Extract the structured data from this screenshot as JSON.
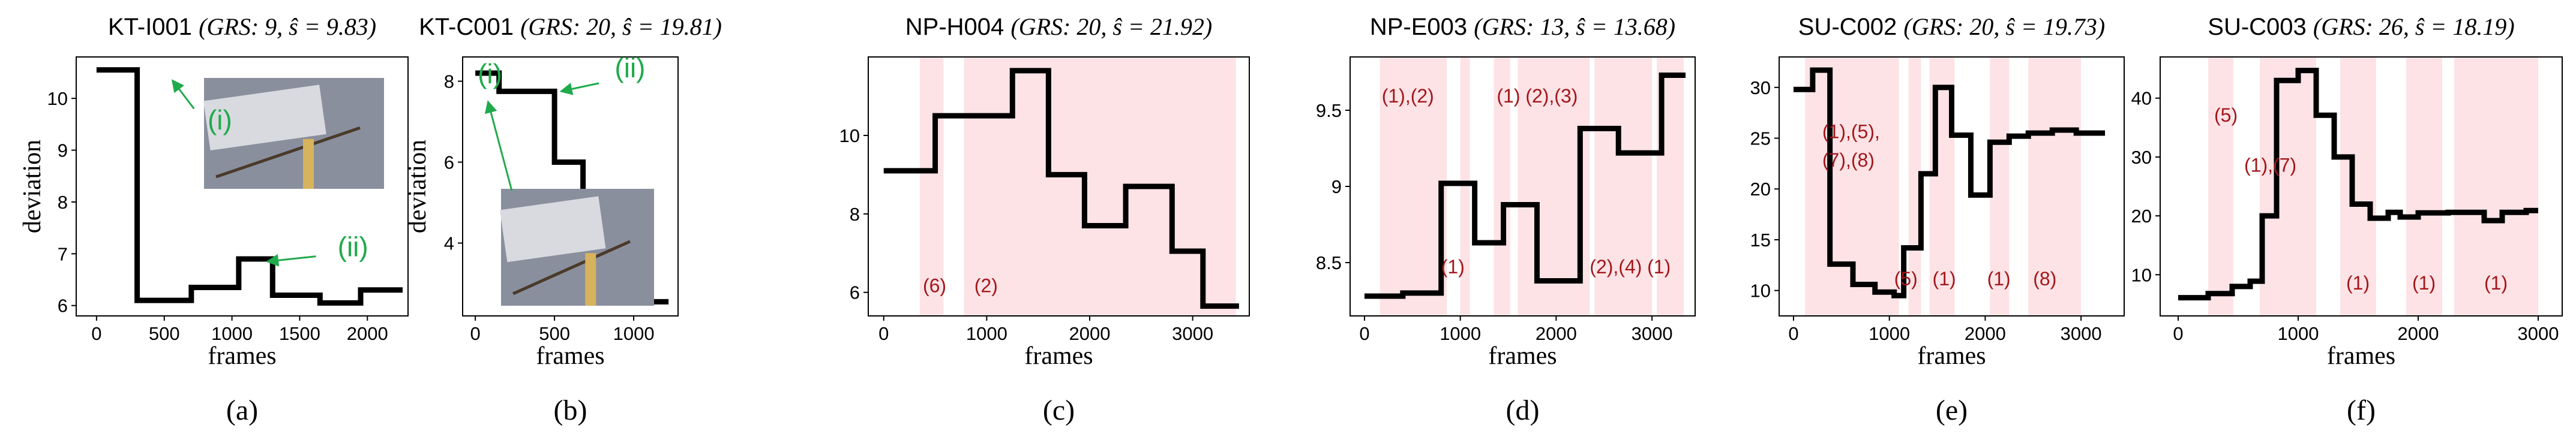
{
  "colors": {
    "line": "#000000",
    "band": "#fde3e6",
    "annotation_red": "#a3161a",
    "annotation_green": "#1faa4b",
    "axis": "#000000"
  },
  "chart_data": [
    {
      "id": "a",
      "type": "line",
      "title_id": "KT-I001",
      "title_formula": "(GRS: 9, ŝ = 9.83)",
      "caption": "(a)",
      "xlabel": "frames",
      "ylabel": "deviation",
      "xlim": [
        -150,
        2300
      ],
      "ylim": [
        5.8,
        10.8
      ],
      "xticks": [
        0,
        500,
        1000,
        1500,
        2000
      ],
      "yticks": [
        6,
        7,
        8,
        9,
        10
      ],
      "steps": [
        [
          0,
          10.55
        ],
        [
          300,
          6.1
        ],
        [
          700,
          6.35
        ],
        [
          1050,
          6.9
        ],
        [
          1300,
          6.2
        ],
        [
          1650,
          6.05
        ],
        [
          1950,
          6.3
        ]
      ],
      "x_end": 2260,
      "bands": [],
      "labels": [],
      "green_labels": [
        {
          "text": "(i)",
          "x": 820,
          "y": 9.4,
          "arrow_to": [
            560,
            10.35
          ],
          "arrow_from": [
            720,
            9.8
          ]
        },
        {
          "text": "(ii)",
          "x": 1780,
          "y": 6.95,
          "arrow_to": [
            1260,
            6.85
          ],
          "arrow_from": [
            1620,
            6.95
          ]
        }
      ],
      "inset": {
        "position": "top-right"
      }
    },
    {
      "id": "b",
      "type": "line",
      "title_id": "KT-C001",
      "title_formula": "(GRS: 20, ŝ = 19.81)",
      "caption": "(b)",
      "xlabel": "frames",
      "ylabel": "deviation",
      "xlim": [
        -80,
        1280
      ],
      "ylim": [
        2.2,
        8.6
      ],
      "xticks": [
        0,
        500,
        1000
      ],
      "yticks": [
        4,
        6,
        8
      ],
      "steps": [
        [
          0,
          8.2
        ],
        [
          150,
          7.75
        ],
        [
          500,
          6.0
        ],
        [
          680,
          4.25
        ],
        [
          850,
          3.6
        ],
        [
          1050,
          2.55
        ]
      ],
      "x_end": 1220,
      "bands": [],
      "labels": [],
      "green_labels": [
        {
          "text": "(i)",
          "x": 15,
          "y": 7.95,
          "arrow_to": [
            80,
            7.5
          ],
          "arrow_from": [
            230,
            5.3
          ]
        },
        {
          "text": "(ii)",
          "x": 880,
          "y": 8.1,
          "arrow_to": [
            540,
            7.75
          ],
          "arrow_from": [
            780,
            7.95
          ]
        }
      ],
      "inset": {
        "position": "bottom-left"
      }
    },
    {
      "id": "c",
      "type": "line",
      "title_id": "NP-H004",
      "title_formula": "(GRS: 20, ŝ = 21.92)",
      "caption": "(c)",
      "xlabel": "frames",
      "ylabel": "",
      "xlim": [
        -150,
        3550
      ],
      "ylim": [
        5.4,
        12.0
      ],
      "xticks": [
        0,
        1000,
        2000,
        3000
      ],
      "yticks": [
        6,
        8,
        10
      ],
      "steps": [
        [
          0,
          9.1
        ],
        [
          500,
          10.5
        ],
        [
          1050,
          10.5
        ],
        [
          1250,
          11.65
        ],
        [
          1600,
          9.0
        ],
        [
          1950,
          7.7
        ],
        [
          2350,
          8.7
        ],
        [
          2800,
          7.05
        ],
        [
          3100,
          5.65
        ]
      ],
      "x_end": 3450,
      "bands": [
        [
          350,
          580
        ],
        [
          780,
          3420
        ]
      ],
      "labels": [
        {
          "text": "(6)",
          "x": 380,
          "y": 6.0
        },
        {
          "text": "(2)",
          "x": 880,
          "y": 6.0
        }
      ],
      "green_labels": []
    },
    {
      "id": "d",
      "type": "line",
      "title_id": "NP-E003",
      "title_formula": "(GRS: 13, ŝ = 13.68)",
      "caption": "(d)",
      "xlabel": "frames",
      "ylabel": "",
      "xlim": [
        -150,
        3450
      ],
      "ylim": [
        8.15,
        9.85
      ],
      "xticks": [
        0,
        1000,
        2000,
        3000
      ],
      "yticks": [
        8.5,
        9.0,
        9.5
      ],
      "steps": [
        [
          0,
          8.28
        ],
        [
          400,
          8.3
        ],
        [
          800,
          9.02
        ],
        [
          1150,
          8.63
        ],
        [
          1450,
          8.88
        ],
        [
          1800,
          8.38
        ],
        [
          2250,
          9.38
        ],
        [
          2650,
          9.22
        ],
        [
          3100,
          9.73
        ]
      ],
      "x_end": 3350,
      "bands": [
        [
          160,
          860
        ],
        [
          1000,
          1100
        ],
        [
          1350,
          1520
        ],
        [
          1600,
          2350
        ],
        [
          2400,
          3000
        ],
        [
          3050,
          3330
        ]
      ],
      "labels": [
        {
          "text": "(1),(2)",
          "x": 180,
          "y": 9.55
        },
        {
          "text": "(1)",
          "x": 1380,
          "y": 9.55
        },
        {
          "text": "(2),(3)",
          "x": 1680,
          "y": 9.55
        },
        {
          "text": "(1)",
          "x": 800,
          "y": 8.43
        },
        {
          "text": "(2),(4)",
          "x": 2350,
          "y": 8.43
        },
        {
          "text": "(1)",
          "x": 2950,
          "y": 8.43
        }
      ],
      "green_labels": []
    },
    {
      "id": "e",
      "type": "line",
      "title_id": "SU-C002",
      "title_formula": "(GRS: 20, ŝ = 19.73)",
      "caption": "(e)",
      "xlabel": "frames",
      "ylabel": "",
      "xlim": [
        -150,
        3450
      ],
      "ylim": [
        7.5,
        33.0
      ],
      "xticks": [
        0,
        1000,
        2000,
        3000
      ],
      "yticks": [
        10,
        15,
        20,
        25,
        30
      ],
      "steps": [
        [
          0,
          29.8
        ],
        [
          200,
          31.7
        ],
        [
          380,
          12.6
        ],
        [
          620,
          10.6
        ],
        [
          850,
          9.85
        ],
        [
          1050,
          9.5
        ],
        [
          1150,
          14.2
        ],
        [
          1330,
          21.5
        ],
        [
          1480,
          30.0
        ],
        [
          1650,
          25.3
        ],
        [
          1850,
          19.4
        ],
        [
          2050,
          24.6
        ],
        [
          2250,
          25.2
        ],
        [
          2450,
          25.5
        ],
        [
          2700,
          25.8
        ],
        [
          2950,
          25.5
        ]
      ],
      "x_end": 3250,
      "bands": [
        [
          120,
          1100
        ],
        [
          1200,
          1330
        ],
        [
          1420,
          1680
        ],
        [
          2050,
          2250
        ],
        [
          2450,
          3000
        ]
      ],
      "labels": [
        {
          "text": "(1),(5),",
          "x": 300,
          "y": 25.0
        },
        {
          "text": "(7),(8)",
          "x": 300,
          "y": 22.2
        },
        {
          "text": "(5)",
          "x": 1050,
          "y": 10.5
        },
        {
          "text": "(1)",
          "x": 1450,
          "y": 10.5
        },
        {
          "text": "(1)",
          "x": 2020,
          "y": 10.5
        },
        {
          "text": "(8)",
          "x": 2500,
          "y": 10.5
        }
      ],
      "green_labels": []
    },
    {
      "id": "f",
      "type": "line",
      "title_id": "SU-C003",
      "title_formula": "(GRS: 26, ŝ = 18.19)",
      "caption": "(f)",
      "xlabel": "frames",
      "ylabel": "",
      "xlim": [
        -150,
        3200
      ],
      "ylim": [
        3.0,
        47.0
      ],
      "xticks": [
        0,
        1000,
        2000,
        3000
      ],
      "yticks": [
        10,
        20,
        30,
        40
      ],
      "steps": [
        [
          0,
          6.1
        ],
        [
          250,
          6.8
        ],
        [
          450,
          8.0
        ],
        [
          600,
          8.9
        ],
        [
          700,
          20.0
        ],
        [
          820,
          43.0
        ],
        [
          1000,
          44.7
        ],
        [
          1150,
          37.1
        ],
        [
          1300,
          30.0
        ],
        [
          1450,
          22.0
        ],
        [
          1600,
          19.6
        ],
        [
          1750,
          20.6
        ],
        [
          1850,
          19.8
        ],
        [
          2000,
          20.5
        ],
        [
          2250,
          20.6
        ],
        [
          2550,
          19.2
        ],
        [
          2700,
          20.6
        ],
        [
          2900,
          20.9
        ]
      ],
      "x_end": 3000,
      "bands": [
        [
          250,
          460
        ],
        [
          680,
          1150
        ],
        [
          1350,
          1650
        ],
        [
          1900,
          2200
        ],
        [
          2300,
          3000
        ]
      ],
      "labels": [
        {
          "text": "(5)",
          "x": 300,
          "y": 36.0
        },
        {
          "text": "(1),(7)",
          "x": 550,
          "y": 27.5
        },
        {
          "text": "(1)",
          "x": 1400,
          "y": 7.5
        },
        {
          "text": "(1)",
          "x": 1950,
          "y": 7.5
        },
        {
          "text": "(1)",
          "x": 2550,
          "y": 7.5
        }
      ],
      "green_labels": []
    }
  ]
}
